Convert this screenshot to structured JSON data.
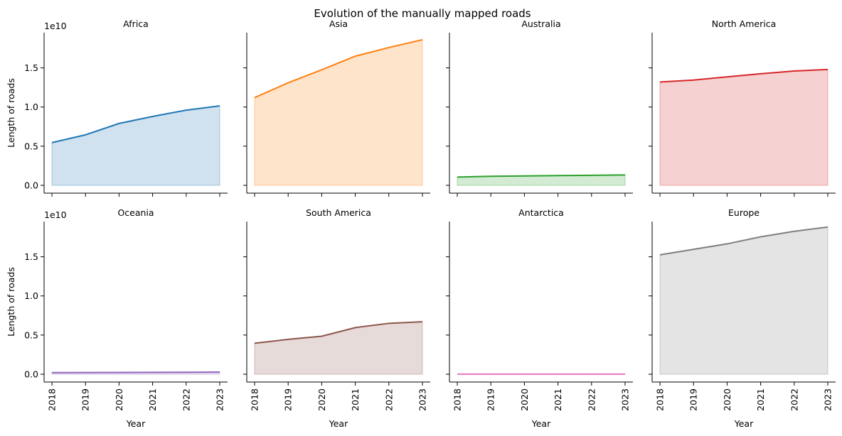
{
  "figure": {
    "title": "Evolution of the manually mapped roads",
    "xlabel": "Year",
    "ylabel": "Length of roads",
    "y_offset_label": "1e10"
  },
  "chart_data": {
    "type": "area",
    "title": "Evolution of the manually mapped roads",
    "xlabel": "Year",
    "ylabel": "Length of roads",
    "x": [
      2018,
      2019,
      2020,
      2021,
      2022,
      2023
    ],
    "x_tick_labels": [
      "2018",
      "2019",
      "2020",
      "2021",
      "2022",
      "2023"
    ],
    "y_tick_values": [
      0,
      0.5,
      1.0,
      1.5
    ],
    "y_tick_labels": [
      "0.0",
      "0.5",
      "1.0",
      "1.5"
    ],
    "y_scale_multiplier": "1e10",
    "ylim": [
      -0.1,
      1.95
    ],
    "grid": false,
    "layout": "2x4 facets, shared y axis",
    "panels": [
      {
        "name": "Africa",
        "color": "#1f77b4",
        "values": [
          5.45,
          6.45,
          7.9,
          8.8,
          9.6,
          10.15
        ]
      },
      {
        "name": "Asia",
        "color": "#ff7f0e",
        "values": [
          11.2,
          13.1,
          14.75,
          16.5,
          17.6,
          18.6
        ]
      },
      {
        "name": "Australia",
        "color": "#2ca02c",
        "values": [
          1.05,
          1.15,
          1.2,
          1.25,
          1.28,
          1.32
        ]
      },
      {
        "name": "North America",
        "color": "#d62728",
        "values": [
          13.2,
          13.45,
          13.85,
          14.25,
          14.6,
          14.8
        ]
      },
      {
        "name": "Oceania",
        "color": "#9467bd",
        "values": [
          0.2,
          0.21,
          0.22,
          0.24,
          0.25,
          0.27
        ]
      },
      {
        "name": "South America",
        "color": "#8c564b",
        "values": [
          3.95,
          4.45,
          4.85,
          5.95,
          6.5,
          6.7
        ]
      },
      {
        "name": "Antarctica",
        "color": "#e377c2",
        "values": [
          0.005,
          0.005,
          0.005,
          0.005,
          0.005,
          0.005
        ]
      },
      {
        "name": "Europe",
        "color": "#7f7f7f",
        "values": [
          15.25,
          15.95,
          16.65,
          17.55,
          18.25,
          18.8
        ]
      }
    ]
  }
}
